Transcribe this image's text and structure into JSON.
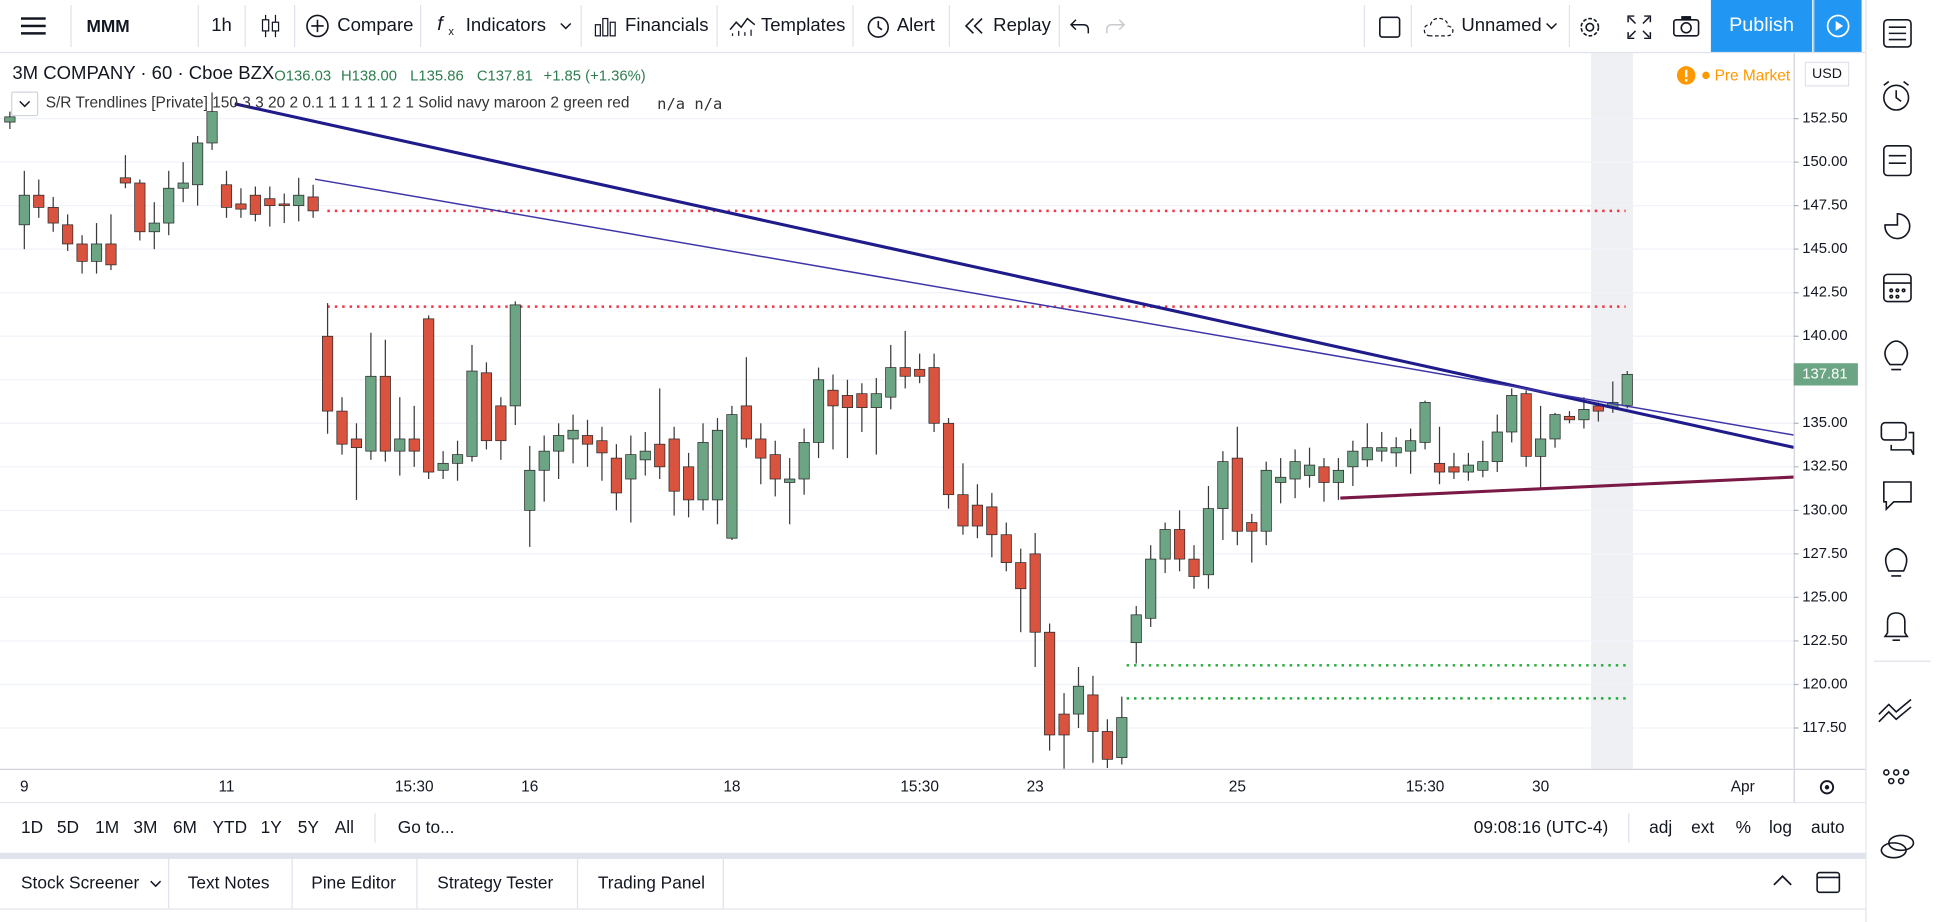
{
  "toolbar": {
    "symbol": "MMM",
    "interval": "1h",
    "compare": "Compare",
    "indicators": "Indicators",
    "financials": "Financials",
    "templates": "Templates",
    "alert": "Alert",
    "replay": "Replay",
    "layout": "Unnamed",
    "publish": "Publish"
  },
  "legend": {
    "title": "3M COMPANY · 60 · Cboe BZX",
    "open": "O136.03",
    "high": "H138.00",
    "low": "L135.86",
    "close": "C137.81",
    "change": "+1.85 (+1.36%)",
    "indicator": "S/R Trendlines [Private] 150 3 3 20 2 0.1 1 1 1 1 1 2 1 Solid navy maroon 2 green red",
    "indicator_values": "n/a n/a"
  },
  "market_status": "Pre Market",
  "currency": "USD",
  "chart_data": {
    "type": "candlestick",
    "categories": [
      null,
      "9",
      null,
      null,
      null,
      null,
      null,
      null,
      null,
      null,
      null,
      null,
      null,
      null,
      null,
      "11",
      null,
      null,
      null,
      null,
      null,
      null,
      null,
      null,
      null,
      null,
      null,
      null,
      "15:30",
      null,
      null,
      null,
      null,
      null,
      null,
      null,
      "16",
      null,
      null,
      null,
      null,
      null,
      null,
      null,
      null,
      null,
      null,
      null,
      null,
      null,
      "18",
      null,
      null,
      null,
      null,
      null,
      null,
      null,
      null,
      null,
      null,
      null,
      null,
      "15:30",
      null,
      null,
      null,
      null,
      null,
      null,
      null,
      "23",
      null,
      null,
      null,
      null,
      null,
      null,
      null,
      null,
      null,
      null,
      null,
      null,
      null,
      "25",
      null,
      null,
      null,
      null,
      null,
      null,
      null,
      null,
      null,
      null,
      null,
      null,
      "15:30",
      null,
      null,
      null,
      null,
      null,
      null,
      null,
      "30",
      null,
      null,
      null,
      null,
      null,
      null,
      null,
      null,
      null,
      null,
      null,
      null,
      null,
      "Apr"
    ],
    "open": [
      152.3,
      146.4,
      148.1,
      147.4,
      146.4,
      145.3,
      144.3,
      145.3,
      149.1,
      148.8,
      146.0,
      146.5,
      148.5,
      148.7,
      151.1,
      148.7,
      147.6,
      148.1,
      147.9,
      147.6,
      147.5,
      148.0,
      140.0,
      135.7,
      134.1,
      133.4,
      137.7,
      133.4,
      134.1,
      141.0,
      132.3,
      132.7,
      133.1,
      137.9,
      136.0,
      136.0,
      130.0,
      132.3,
      133.4,
      134.1,
      134.3,
      134.0,
      133.0,
      131.8,
      132.9,
      133.8,
      134.1,
      132.5,
      130.6,
      130.6,
      128.4,
      136.0,
      134.1,
      133.2,
      131.6,
      131.8,
      133.9,
      136.9,
      136.6,
      136.7,
      135.9,
      136.5,
      138.2,
      138.1,
      138.2,
      135.0,
      130.9,
      130.3,
      130.2,
      128.6,
      127.0,
      127.5,
      123.0,
      118.3,
      118.3,
      119.4,
      117.3,
      115.8,
      122.4,
      123.8,
      127.2,
      128.9,
      127.2,
      126.3,
      130.1,
      133.0,
      129.3,
      128.8,
      131.6,
      131.8,
      132.0,
      132.5,
      131.6,
      132.5,
      132.9,
      133.4,
      133.3,
      133.4,
      133.9,
      132.7,
      132.5,
      132.2,
      132.3,
      132.8,
      134.5,
      136.7,
      133.1,
      134.1,
      135.4,
      135.2,
      136.0,
      135.9,
      136.03,
      null,
      null,
      null,
      null,
      null,
      null,
      null,
      null
    ],
    "high": [
      152.9,
      149.5,
      149.0,
      148.0,
      147.0,
      145.8,
      146.5,
      147.0,
      150.4,
      149.0,
      147.7,
      149.5,
      150.0,
      151.5,
      154.0,
      149.5,
      148.5,
      148.6,
      148.6,
      148.2,
      149.1,
      148.7,
      141.9,
      136.5,
      135.0,
      140.2,
      139.8,
      136.5,
      136.0,
      141.2,
      133.4,
      134.0,
      139.5,
      138.5,
      136.5,
      142.0,
      133.7,
      134.3,
      135.0,
      135.5,
      135.2,
      134.8,
      133.8,
      134.3,
      134.5,
      137.0,
      134.8,
      133.3,
      135.0,
      135.3,
      136.0,
      138.8,
      135.0,
      134.0,
      133.0,
      134.7,
      138.2,
      137.8,
      137.5,
      137.3,
      137.6,
      139.5,
      140.3,
      139.0,
      139.0,
      135.3,
      132.7,
      131.5,
      131.0,
      129.3,
      127.8,
      128.7,
      123.5,
      119.5,
      121.0,
      120.5,
      118.0,
      119.3,
      124.5,
      128.0,
      129.3,
      130.0,
      128.0,
      131.4,
      133.4,
      134.8,
      129.8,
      132.8,
      133.0,
      133.5,
      133.6,
      133.0,
      133.0,
      134.0,
      135.0,
      134.5,
      134.2,
      134.7,
      136.3,
      134.8,
      133.3,
      133.3,
      134.0,
      135.5,
      137.0,
      136.9,
      136.0,
      135.6,
      135.7,
      136.5,
      136.2,
      137.4,
      138.0,
      null,
      null,
      null,
      null,
      null,
      null,
      null,
      null
    ],
    "low": [
      151.9,
      145.0,
      146.8,
      146.0,
      144.9,
      143.6,
      143.6,
      143.8,
      148.5,
      145.5,
      145.0,
      145.8,
      147.7,
      147.5,
      150.7,
      146.8,
      146.8,
      146.6,
      146.3,
      146.5,
      146.6,
      146.8,
      134.4,
      133.2,
      130.6,
      132.9,
      132.8,
      132.0,
      132.5,
      131.8,
      131.8,
      131.7,
      132.8,
      133.5,
      132.9,
      134.9,
      127.9,
      130.5,
      131.8,
      132.7,
      132.5,
      131.7,
      130.0,
      129.3,
      132.0,
      131.8,
      129.7,
      129.6,
      130.0,
      129.2,
      128.3,
      133.6,
      131.5,
      130.8,
      129.2,
      130.9,
      133.0,
      133.5,
      133.0,
      134.5,
      133.2,
      135.8,
      137.0,
      137.3,
      134.5,
      130.1,
      128.6,
      128.4,
      127.3,
      126.5,
      123.0,
      121.0,
      116.2,
      115.0,
      117.5,
      115.5,
      115.2,
      115.4,
      121.2,
      123.3,
      126.4,
      126.5,
      125.5,
      125.5,
      128.3,
      128.0,
      127.0,
      128.0,
      130.4,
      130.7,
      131.3,
      130.5,
      130.6,
      131.4,
      132.5,
      132.8,
      132.5,
      132.1,
      133.5,
      131.5,
      131.8,
      131.7,
      131.9,
      132.2,
      133.9,
      132.5,
      131.3,
      133.6,
      135.0,
      134.7,
      135.1,
      135.6,
      135.86,
      null,
      null,
      null,
      null,
      null,
      null,
      null,
      null
    ],
    "close": [
      152.6,
      148.1,
      147.4,
      146.5,
      145.3,
      144.3,
      145.3,
      144.1,
      148.8,
      146.0,
      146.5,
      148.5,
      148.8,
      151.1,
      152.9,
      147.4,
      147.3,
      147.0,
      147.5,
      147.5,
      148.1,
      147.2,
      135.7,
      133.8,
      133.6,
      137.7,
      133.4,
      134.1,
      133.4,
      132.2,
      132.7,
      133.2,
      138.0,
      134.0,
      134.0,
      141.8,
      132.3,
      133.4,
      134.3,
      134.6,
      133.8,
      133.3,
      131.0,
      133.2,
      133.4,
      132.5,
      131.1,
      130.6,
      133.9,
      134.6,
      135.5,
      134.1,
      133.0,
      131.8,
      131.8,
      133.9,
      137.5,
      136.0,
      135.9,
      135.9,
      136.7,
      138.2,
      137.7,
      137.7,
      135.0,
      130.9,
      129.1,
      129.1,
      128.6,
      127.0,
      125.5,
      123.0,
      117.1,
      117.1,
      119.9,
      117.3,
      115.7,
      118.1,
      124.0,
      127.2,
      128.9,
      127.2,
      126.2,
      130.1,
      132.8,
      128.8,
      128.8,
      132.3,
      131.9,
      132.8,
      132.6,
      131.6,
      132.3,
      133.4,
      133.6,
      133.6,
      133.6,
      134.0,
      136.2,
      132.2,
      132.2,
      132.6,
      132.8,
      134.5,
      136.6,
      133.1,
      134.1,
      135.5,
      135.2,
      135.8,
      135.7,
      136.2,
      137.81,
      null,
      null,
      null,
      null,
      null,
      null,
      null,
      null
    ],
    "up_color": "#6ba583",
    "down_color": "#d9533f",
    "ylim": [
      115.16,
      156.33
    ],
    "yticks": [
      {
        "value": 117.5,
        "label": "117.50"
      },
      {
        "value": 120,
        "label": "120.00"
      },
      {
        "value": 122.5,
        "label": "122.50"
      },
      {
        "value": 125,
        "label": "125.00"
      },
      {
        "value": 127.5,
        "label": "127.50"
      },
      {
        "value": 130,
        "label": "130.00"
      },
      {
        "value": 132.5,
        "label": "132.50"
      },
      {
        "value": 135,
        "label": "135.00"
      },
      {
        "value": 137.5,
        "label": "137.50"
      },
      {
        "value": 140,
        "label": "140.00"
      },
      {
        "value": 142.5,
        "label": "142.50"
      },
      {
        "value": 145,
        "label": "145.00"
      },
      {
        "value": 147.5,
        "label": "147.50"
      },
      {
        "value": 150,
        "label": "150.00"
      },
      {
        "value": 152.5,
        "label": "152.50"
      }
    ],
    "grid": true,
    "levels": [
      {
        "value": 147.2,
        "color": "#f23645"
      },
      {
        "value": 141.7,
        "color": "#f23645"
      },
      {
        "value": 121.1,
        "color": "#22ab3a"
      },
      {
        "value": 119.2,
        "color": "#22ab3a"
      }
    ]
  },
  "ranges": [
    "1D",
    "5D",
    "1M",
    "3M",
    "6M",
    "YTD",
    "1Y",
    "5Y",
    "All"
  ],
  "goto": "Go to...",
  "clock": "09:08:16 (UTC-4)",
  "scale_options": [
    "adj",
    "ext",
    "%",
    "log",
    "auto"
  ],
  "tabs": [
    "Stock Screener",
    "Text Notes",
    "Pine Editor",
    "Strategy Tester",
    "Trading Panel"
  ]
}
